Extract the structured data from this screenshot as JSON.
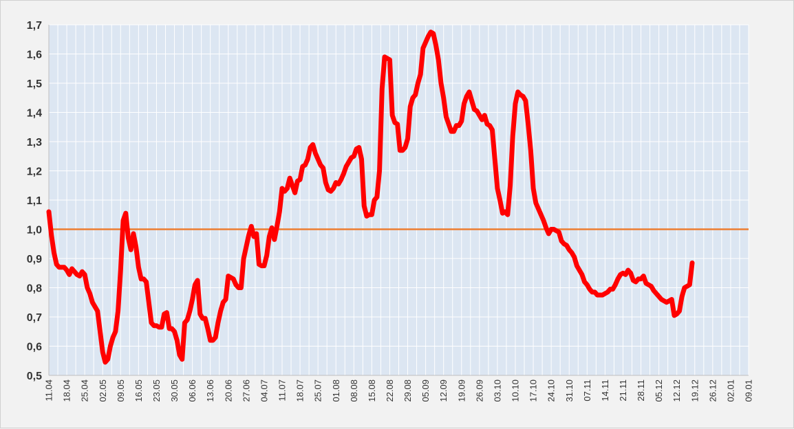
{
  "chart_data": {
    "type": "line",
    "title": "",
    "xlabel": "",
    "ylabel": "",
    "ylim": [
      0.5,
      1.7
    ],
    "y_ticks": [
      "0,5",
      "0,6",
      "0,7",
      "0,8",
      "0,9",
      "1,0",
      "1,1",
      "1,2",
      "1,3",
      "1,4",
      "1,5",
      "1,6",
      "1,7"
    ],
    "y_tick_values": [
      0.5,
      0.6,
      0.7,
      0.8,
      0.9,
      1.0,
      1.1,
      1.2,
      1.3,
      1.4,
      1.5,
      1.6,
      1.7
    ],
    "x_ticks": [
      "11.04",
      "18.04",
      "25.04",
      "02.05",
      "09.05",
      "16.05",
      "23.05",
      "30.05",
      "06.06",
      "13.06",
      "20.06",
      "27.06",
      "04.07",
      "11.07",
      "18.07",
      "25.07",
      "01.08",
      "08.08",
      "15.08",
      "22.08",
      "29.08",
      "05.09",
      "12.09",
      "19.09",
      "26.09",
      "03.10",
      "10.10",
      "17.10",
      "24.10",
      "31.10",
      "07.11",
      "14.11",
      "21.11",
      "28.11",
      "05.12",
      "12.12",
      "19.12",
      "26.12",
      "02.01",
      "09.01"
    ],
    "x_tick_days": [
      0,
      7,
      14,
      21,
      28,
      35,
      42,
      49,
      56,
      63,
      70,
      77,
      84,
      91,
      98,
      105,
      112,
      119,
      126,
      133,
      140,
      147,
      154,
      161,
      168,
      175,
      182,
      189,
      196,
      203,
      210,
      217,
      224,
      231,
      238,
      245,
      252,
      259,
      266,
      273
    ],
    "reference_line": {
      "y": 1.0,
      "color": "#ED7D31"
    },
    "series": [
      {
        "color": "#FF0000",
        "points": [
          [
            0,
            1.06
          ],
          [
            1,
            0.98
          ],
          [
            2,
            0.92
          ],
          [
            3,
            0.88
          ],
          [
            4,
            0.87
          ],
          [
            5,
            0.87
          ],
          [
            6,
            0.87
          ],
          [
            7,
            0.86
          ],
          [
            8,
            0.845
          ],
          [
            9,
            0.865
          ],
          [
            10,
            0.855
          ],
          [
            11,
            0.845
          ],
          [
            12,
            0.84
          ],
          [
            13,
            0.855
          ],
          [
            14,
            0.845
          ],
          [
            15,
            0.8
          ],
          [
            16,
            0.78
          ],
          [
            17,
            0.75
          ],
          [
            18,
            0.735
          ],
          [
            19,
            0.72
          ],
          [
            20,
            0.65
          ],
          [
            21,
            0.58
          ],
          [
            22,
            0.545
          ],
          [
            23,
            0.555
          ],
          [
            24,
            0.6
          ],
          [
            25,
            0.63
          ],
          [
            26,
            0.65
          ],
          [
            27,
            0.72
          ],
          [
            28,
            0.86
          ],
          [
            29,
            1.03
          ],
          [
            30,
            1.055
          ],
          [
            31,
            0.97
          ],
          [
            32,
            0.93
          ],
          [
            33,
            0.985
          ],
          [
            34,
            0.94
          ],
          [
            35,
            0.87
          ],
          [
            36,
            0.83
          ],
          [
            37,
            0.83
          ],
          [
            38,
            0.82
          ],
          [
            39,
            0.75
          ],
          [
            40,
            0.68
          ],
          [
            41,
            0.67
          ],
          [
            42,
            0.67
          ],
          [
            43,
            0.665
          ],
          [
            44,
            0.665
          ],
          [
            45,
            0.71
          ],
          [
            46,
            0.715
          ],
          [
            47,
            0.66
          ],
          [
            48,
            0.66
          ],
          [
            49,
            0.65
          ],
          [
            50,
            0.62
          ],
          [
            51,
            0.57
          ],
          [
            52,
            0.555
          ],
          [
            53,
            0.68
          ],
          [
            54,
            0.69
          ],
          [
            55,
            0.72
          ],
          [
            56,
            0.76
          ],
          [
            57,
            0.81
          ],
          [
            58,
            0.825
          ],
          [
            59,
            0.71
          ],
          [
            60,
            0.695
          ],
          [
            61,
            0.695
          ],
          [
            62,
            0.66
          ],
          [
            63,
            0.62
          ],
          [
            64,
            0.62
          ],
          [
            65,
            0.63
          ],
          [
            66,
            0.68
          ],
          [
            67,
            0.72
          ],
          [
            68,
            0.75
          ],
          [
            69,
            0.76
          ],
          [
            70,
            0.84
          ],
          [
            71,
            0.835
          ],
          [
            72,
            0.83
          ],
          [
            73,
            0.81
          ],
          [
            74,
            0.8
          ],
          [
            75,
            0.8
          ],
          [
            76,
            0.9
          ],
          [
            77,
            0.94
          ],
          [
            78,
            0.98
          ],
          [
            79,
            1.01
          ],
          [
            80,
            0.975
          ],
          [
            81,
            0.985
          ],
          [
            82,
            0.88
          ],
          [
            83,
            0.875
          ],
          [
            84,
            0.875
          ],
          [
            85,
            0.91
          ],
          [
            86,
            0.975
          ],
          [
            87,
            1.005
          ],
          [
            88,
            0.965
          ],
          [
            89,
            1.01
          ],
          [
            90,
            1.06
          ],
          [
            91,
            1.14
          ],
          [
            92,
            1.13
          ],
          [
            93,
            1.14
          ],
          [
            94,
            1.175
          ],
          [
            95,
            1.15
          ],
          [
            96,
            1.125
          ],
          [
            97,
            1.165
          ],
          [
            98,
            1.17
          ],
          [
            99,
            1.215
          ],
          [
            100,
            1.22
          ],
          [
            101,
            1.24
          ],
          [
            102,
            1.28
          ],
          [
            103,
            1.29
          ],
          [
            104,
            1.26
          ],
          [
            105,
            1.24
          ],
          [
            106,
            1.22
          ],
          [
            107,
            1.21
          ],
          [
            108,
            1.16
          ],
          [
            109,
            1.135
          ],
          [
            110,
            1.13
          ],
          [
            111,
            1.14
          ],
          [
            112,
            1.16
          ],
          [
            113,
            1.155
          ],
          [
            114,
            1.17
          ],
          [
            115,
            1.19
          ],
          [
            116,
            1.215
          ],
          [
            117,
            1.23
          ],
          [
            118,
            1.245
          ],
          [
            119,
            1.25
          ],
          [
            120,
            1.275
          ],
          [
            121,
            1.28
          ],
          [
            122,
            1.24
          ],
          [
            123,
            1.08
          ],
          [
            124,
            1.045
          ],
          [
            125,
            1.05
          ],
          [
            126,
            1.05
          ],
          [
            127,
            1.1
          ],
          [
            128,
            1.11
          ],
          [
            129,
            1.2
          ],
          [
            130,
            1.48
          ],
          [
            131,
            1.59
          ],
          [
            132,
            1.585
          ],
          [
            133,
            1.58
          ],
          [
            134,
            1.39
          ],
          [
            135,
            1.365
          ],
          [
            136,
            1.36
          ],
          [
            137,
            1.27
          ],
          [
            138,
            1.27
          ],
          [
            139,
            1.28
          ],
          [
            140,
            1.31
          ],
          [
            141,
            1.42
          ],
          [
            142,
            1.45
          ],
          [
            143,
            1.46
          ],
          [
            144,
            1.5
          ],
          [
            145,
            1.53
          ],
          [
            146,
            1.62
          ],
          [
            147,
            1.64
          ],
          [
            148,
            1.66
          ],
          [
            149,
            1.675
          ],
          [
            150,
            1.67
          ],
          [
            151,
            1.63
          ],
          [
            152,
            1.58
          ],
          [
            153,
            1.5
          ],
          [
            154,
            1.45
          ],
          [
            155,
            1.385
          ],
          [
            156,
            1.36
          ],
          [
            157,
            1.335
          ],
          [
            158,
            1.335
          ],
          [
            159,
            1.355
          ],
          [
            160,
            1.355
          ],
          [
            161,
            1.37
          ],
          [
            162,
            1.43
          ],
          [
            163,
            1.455
          ],
          [
            164,
            1.47
          ],
          [
            165,
            1.44
          ],
          [
            166,
            1.41
          ],
          [
            167,
            1.405
          ],
          [
            168,
            1.39
          ],
          [
            169,
            1.375
          ],
          [
            170,
            1.39
          ],
          [
            171,
            1.36
          ],
          [
            172,
            1.355
          ],
          [
            173,
            1.34
          ],
          [
            174,
            1.24
          ],
          [
            175,
            1.14
          ],
          [
            176,
            1.1
          ],
          [
            177,
            1.055
          ],
          [
            178,
            1.06
          ],
          [
            179,
            1.05
          ],
          [
            180,
            1.15
          ],
          [
            181,
            1.32
          ],
          [
            182,
            1.43
          ],
          [
            183,
            1.47
          ],
          [
            184,
            1.46
          ],
          [
            185,
            1.455
          ],
          [
            186,
            1.44
          ],
          [
            187,
            1.36
          ],
          [
            188,
            1.27
          ],
          [
            189,
            1.14
          ],
          [
            190,
            1.09
          ],
          [
            191,
            1.07
          ],
          [
            192,
            1.05
          ],
          [
            193,
            1.03
          ],
          [
            194,
            1.005
          ],
          [
            195,
            0.985
          ],
          [
            196,
            1.0
          ],
          [
            197,
            1.0
          ],
          [
            198,
            0.995
          ],
          [
            199,
            0.99
          ],
          [
            200,
            0.96
          ],
          [
            201,
            0.95
          ],
          [
            202,
            0.945
          ],
          [
            203,
            0.93
          ],
          [
            204,
            0.92
          ],
          [
            205,
            0.905
          ],
          [
            206,
            0.875
          ],
          [
            207,
            0.86
          ],
          [
            208,
            0.845
          ],
          [
            209,
            0.82
          ],
          [
            210,
            0.81
          ],
          [
            211,
            0.795
          ],
          [
            212,
            0.785
          ],
          [
            213,
            0.785
          ],
          [
            214,
            0.775
          ],
          [
            215,
            0.775
          ],
          [
            216,
            0.775
          ],
          [
            217,
            0.78
          ],
          [
            218,
            0.785
          ],
          [
            219,
            0.795
          ],
          [
            220,
            0.795
          ],
          [
            221,
            0.81
          ],
          [
            222,
            0.83
          ],
          [
            223,
            0.845
          ],
          [
            224,
            0.85
          ],
          [
            225,
            0.845
          ],
          [
            226,
            0.86
          ],
          [
            227,
            0.85
          ],
          [
            228,
            0.825
          ],
          [
            229,
            0.82
          ],
          [
            230,
            0.83
          ],
          [
            231,
            0.83
          ],
          [
            232,
            0.84
          ],
          [
            233,
            0.815
          ],
          [
            234,
            0.81
          ],
          [
            235,
            0.805
          ],
          [
            236,
            0.79
          ],
          [
            237,
            0.78
          ],
          [
            238,
            0.77
          ],
          [
            239,
            0.76
          ],
          [
            240,
            0.755
          ],
          [
            241,
            0.75
          ],
          [
            242,
            0.755
          ],
          [
            243,
            0.76
          ],
          [
            244,
            0.705
          ],
          [
            245,
            0.71
          ],
          [
            246,
            0.72
          ],
          [
            247,
            0.77
          ],
          [
            248,
            0.8
          ],
          [
            249,
            0.805
          ],
          [
            250,
            0.81
          ],
          [
            251,
            0.885
          ]
        ]
      }
    ],
    "grid": true,
    "vertical_grid": true,
    "plot_background": "#DCE6F2",
    "x_label_rotation": 270
  }
}
